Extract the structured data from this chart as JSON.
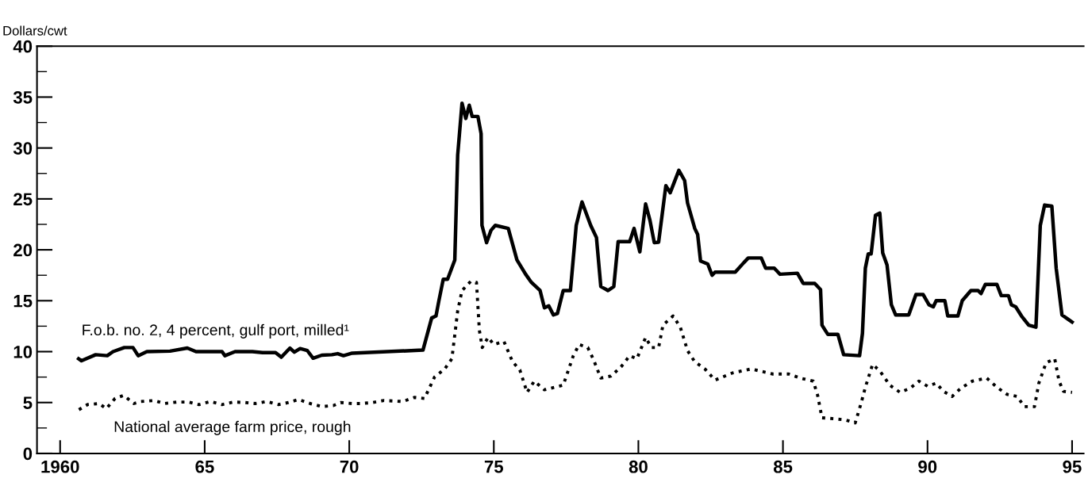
{
  "chart_data": {
    "type": "line",
    "ylabel": "Dollars/cwt",
    "xlim": [
      1959.2,
      1995.4
    ],
    "xticks": [
      {
        "value": 1960,
        "label": "1960"
      },
      {
        "value": 1965,
        "label": "65"
      },
      {
        "value": 1970,
        "label": "70"
      },
      {
        "value": 1975,
        "label": "75"
      },
      {
        "value": 1980,
        "label": "80"
      },
      {
        "value": 1985,
        "label": "85"
      },
      {
        "value": 1990,
        "label": "90"
      },
      {
        "value": 1995,
        "label": "95"
      }
    ],
    "ylim": [
      0,
      40
    ],
    "yticks": [
      0,
      {
        "value": 2.5,
        "label": null
      },
      5,
      {
        "value": 7.5,
        "label": null
      },
      10,
      {
        "value": 12.5,
        "label": null
      },
      15,
      {
        "value": 17.5,
        "label": null
      },
      20,
      {
        "value": 22.5,
        "label": null
      },
      25,
      {
        "value": 27.5,
        "label": null
      },
      30,
      {
        "value": 32.5,
        "label": null
      },
      35,
      {
        "value": 37.5,
        "label": null
      },
      40
    ],
    "grid": false,
    "legend": false,
    "series": [
      {
        "name": "F.o.b. no. 2, 4 percent, gulf port, milled¹",
        "color": "#000000",
        "line_style": "solid",
        "x": [
          1960.64,
          1960.74,
          1961.23,
          1961.63,
          1961.83,
          1962.22,
          1962.52,
          1962.7,
          1963.0,
          1963.8,
          1964.4,
          1964.7,
          1965.6,
          1965.7,
          1966.05,
          1966.65,
          1967.0,
          1967.45,
          1967.65,
          1967.95,
          1968.1,
          1968.3,
          1968.55,
          1968.75,
          1969.05,
          1969.4,
          1969.6,
          1969.8,
          1970.1,
          1972.55,
          1972.85,
          1973.0,
          1973.1,
          1973.25,
          1973.4,
          1973.65,
          1973.75,
          1973.9,
          1974.03,
          1974.15,
          1974.25,
          1974.45,
          1974.56,
          1974.59,
          1974.75,
          1974.9,
          1975.05,
          1975.5,
          1975.8,
          1976.1,
          1976.3,
          1976.6,
          1976.75,
          1976.9,
          1977.06,
          1977.2,
          1977.4,
          1977.65,
          1977.85,
          1978.05,
          1978.35,
          1978.55,
          1978.7,
          1978.95,
          1979.15,
          1979.3,
          1979.7,
          1979.85,
          1980.05,
          1980.25,
          1980.4,
          1980.55,
          1980.7,
          1980.95,
          1981.1,
          1981.4,
          1981.6,
          1981.7,
          1981.95,
          1982.05,
          1982.15,
          1982.4,
          1982.55,
          1982.65,
          1983.35,
          1983.65,
          1983.8,
          1984.25,
          1984.4,
          1984.7,
          1984.9,
          1985.5,
          1985.7,
          1986.1,
          1986.3,
          1986.35,
          1986.55,
          1986.9,
          1987.1,
          1987.65,
          1987.75,
          1987.85,
          1987.95,
          1988.05,
          1988.2,
          1988.35,
          1988.45,
          1988.6,
          1988.75,
          1988.9,
          1989.35,
          1989.6,
          1989.85,
          1990.05,
          1990.2,
          1990.3,
          1990.6,
          1990.7,
          1991.05,
          1991.2,
          1991.5,
          1991.75,
          1991.85,
          1992.0,
          1992.4,
          1992.55,
          1992.8,
          1992.9,
          1993.05,
          1993.25,
          1993.5,
          1993.75,
          1993.9,
          1994.05,
          1994.3,
          1994.45,
          1994.65,
          1994.85,
          1995.0
        ],
        "values": [
          9.3,
          9.1,
          9.7,
          9.6,
          10.0,
          10.4,
          10.4,
          9.6,
          10.0,
          10.05,
          10.35,
          10.0,
          10.0,
          9.6,
          10.0,
          10.0,
          9.9,
          9.9,
          9.45,
          10.35,
          9.95,
          10.3,
          10.1,
          9.35,
          9.65,
          9.7,
          9.8,
          9.6,
          9.85,
          10.15,
          13.3,
          13.5,
          15.0,
          17.1,
          17.1,
          19.0,
          29.3,
          34.4,
          32.9,
          34.2,
          33.1,
          33.1,
          31.4,
          22.4,
          20.7,
          21.9,
          22.4,
          22.1,
          19.0,
          17.6,
          16.8,
          16.0,
          14.3,
          14.5,
          13.6,
          13.75,
          16.0,
          16.0,
          22.4,
          24.7,
          22.4,
          21.2,
          16.4,
          16.0,
          16.4,
          20.8,
          20.8,
          22.1,
          19.8,
          24.5,
          22.9,
          20.7,
          20.75,
          26.3,
          25.6,
          27.8,
          26.8,
          24.6,
          22.1,
          21.5,
          18.9,
          18.6,
          17.5,
          17.8,
          17.8,
          18.75,
          19.2,
          19.2,
          18.2,
          18.2,
          17.6,
          17.7,
          16.7,
          16.7,
          16.1,
          12.6,
          11.7,
          11.7,
          9.7,
          9.6,
          11.8,
          18.2,
          19.6,
          19.6,
          23.4,
          23.6,
          19.7,
          18.5,
          14.6,
          13.6,
          13.6,
          15.6,
          15.6,
          14.6,
          14.4,
          15.0,
          15.0,
          13.5,
          13.5,
          15.0,
          16.0,
          16.0,
          15.7,
          16.6,
          16.6,
          15.5,
          15.5,
          14.6,
          14.4,
          13.5,
          12.6,
          12.4,
          22.4,
          24.4,
          24.3,
          18.2,
          13.6,
          13.2,
          12.9
        ]
      },
      {
        "name": "National average farm price, rough",
        "color": "#000000",
        "line_style": "dotted",
        "x": [
          1960.65,
          1960.95,
          1961.35,
          1961.6,
          1961.9,
          1962.2,
          1962.55,
          1962.8,
          1963.25,
          1963.6,
          1964.05,
          1964.45,
          1964.8,
          1965.2,
          1965.6,
          1966.0,
          1966.4,
          1966.75,
          1967.15,
          1967.55,
          1967.9,
          1968.25,
          1968.65,
          1969.05,
          1969.45,
          1969.7,
          1970.1,
          1970.4,
          1970.8,
          1971.2,
          1971.85,
          1972.25,
          1972.6,
          1972.95,
          1973.3,
          1973.55,
          1973.75,
          1973.9,
          1974.2,
          1974.4,
          1974.5,
          1974.6,
          1974.8,
          1975.0,
          1975.35,
          1975.65,
          1975.9,
          1976.15,
          1976.4,
          1976.75,
          1977.1,
          1977.4,
          1977.75,
          1977.95,
          1978.25,
          1978.45,
          1978.7,
          1979.05,
          1979.4,
          1979.7,
          1979.95,
          1980.25,
          1980.45,
          1980.7,
          1980.85,
          1981.2,
          1981.45,
          1981.7,
          1981.95,
          1982.3,
          1982.65,
          1983.25,
          1983.9,
          1984.65,
          1985.2,
          1985.6,
          1986.05,
          1986.2,
          1986.35,
          1986.8,
          1987.15,
          1987.5,
          1987.7,
          1987.85,
          1988.1,
          1988.35,
          1988.7,
          1989.05,
          1989.4,
          1989.7,
          1990.0,
          1990.3,
          1990.55,
          1990.85,
          1991.15,
          1991.55,
          1992.05,
          1992.4,
          1992.75,
          1993.1,
          1993.35,
          1993.7,
          1993.85,
          1994.1,
          1994.4,
          1994.55,
          1994.7,
          1995.0
        ],
        "values": [
          4.3,
          4.8,
          4.9,
          4.4,
          5.4,
          5.7,
          4.9,
          5.1,
          5.2,
          4.9,
          5.05,
          5.05,
          4.8,
          5.1,
          4.8,
          5.05,
          5.0,
          4.9,
          5.1,
          4.8,
          5.0,
          5.3,
          4.9,
          4.6,
          4.7,
          5.0,
          4.9,
          4.9,
          5.0,
          5.2,
          5.1,
          5.5,
          5.4,
          7.5,
          8.3,
          9.3,
          14.0,
          16.0,
          16.9,
          16.8,
          12.1,
          10.4,
          11.4,
          10.7,
          11.0,
          9.0,
          8.2,
          6.0,
          7.1,
          6.25,
          6.5,
          6.7,
          9.6,
          10.7,
          10.4,
          9.2,
          7.4,
          7.6,
          8.5,
          9.6,
          9.3,
          11.4,
          10.4,
          10.4,
          12.6,
          13.5,
          12.4,
          10.1,
          9.0,
          8.3,
          7.2,
          7.9,
          8.3,
          7.8,
          7.8,
          7.4,
          7.1,
          5.7,
          3.5,
          3.4,
          3.3,
          3.0,
          4.9,
          6.5,
          8.75,
          8.1,
          6.7,
          6.0,
          6.4,
          7.1,
          6.6,
          6.9,
          6.1,
          5.6,
          6.4,
          7.1,
          7.4,
          6.5,
          5.8,
          5.6,
          4.6,
          4.6,
          6.9,
          8.9,
          9.3,
          7.1,
          6.1,
          6.0
        ]
      }
    ]
  }
}
